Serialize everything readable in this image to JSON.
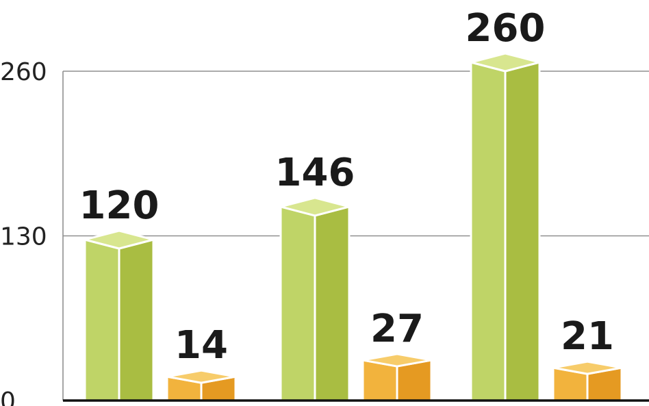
{
  "chart_data": {
    "type": "bar",
    "title": "",
    "xlabel": "",
    "ylabel": "",
    "categories": [
      "",
      "",
      ""
    ],
    "ylim": [
      0,
      260
    ],
    "yticks": [
      0,
      130,
      260
    ],
    "grid": true,
    "legend": "none",
    "series": [
      {
        "values": [
          120,
          146,
          260
        ],
        "color": "#bfd467",
        "top_color": "#d8e68f",
        "side_color": "#a9bd42"
      },
      {
        "values": [
          14,
          27,
          21
        ],
        "color": "#f2b33d",
        "top_color": "#f7cc6a",
        "side_color": "#e59a22"
      }
    ],
    "data_labels": [
      [
        "120",
        "146",
        "260"
      ],
      [
        "14",
        "27",
        "21"
      ]
    ]
  }
}
